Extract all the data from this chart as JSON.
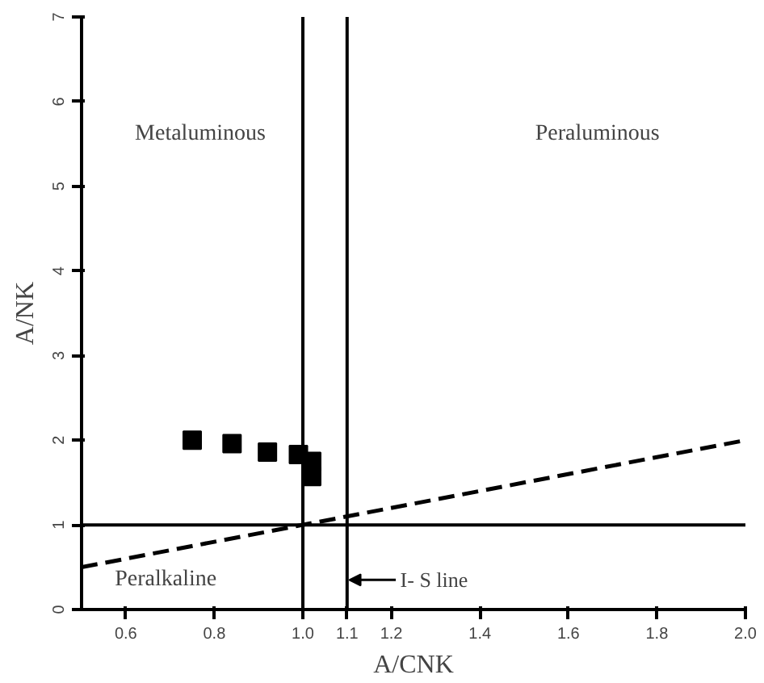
{
  "chart_data": {
    "type": "scatter",
    "xlabel": "A/CNK",
    "ylabel": "A/NK",
    "xlim": [
      0.5,
      2.0
    ],
    "ylim": [
      0,
      7
    ],
    "xticks": [
      0.6,
      0.8,
      {
        "value": 1.0,
        "label": "1.0"
      },
      1.1,
      1.2,
      1.4,
      1.6,
      1.8,
      {
        "value": 2.0,
        "label": "2.0"
      }
    ],
    "yticks": [
      0,
      1,
      2,
      3,
      4,
      5,
      6,
      7
    ],
    "grid": false,
    "series": [
      {
        "color": "#000000",
        "marker": "square",
        "x": [
          0.75,
          0.84,
          0.92,
          0.99,
          1.02,
          1.02
        ],
        "values": [
          2.0,
          1.96,
          1.86,
          1.83,
          1.75,
          1.57
        ]
      },
      {
        "type": "line",
        "color": "#000000",
        "marker": "none",
        "line_style": "dashed",
        "x": [
          0.5,
          2.0
        ],
        "values": [
          0.5,
          2.0
        ]
      }
    ],
    "ref_lines": [
      {
        "axis": "x",
        "value": 1.0
      },
      {
        "axis": "x",
        "value": 1.1,
        "label": "I- S line"
      },
      {
        "axis": "y",
        "value": 1
      }
    ],
    "annotations": [
      "Metaluminous",
      "Peraluminous",
      "Peralkaline"
    ]
  }
}
